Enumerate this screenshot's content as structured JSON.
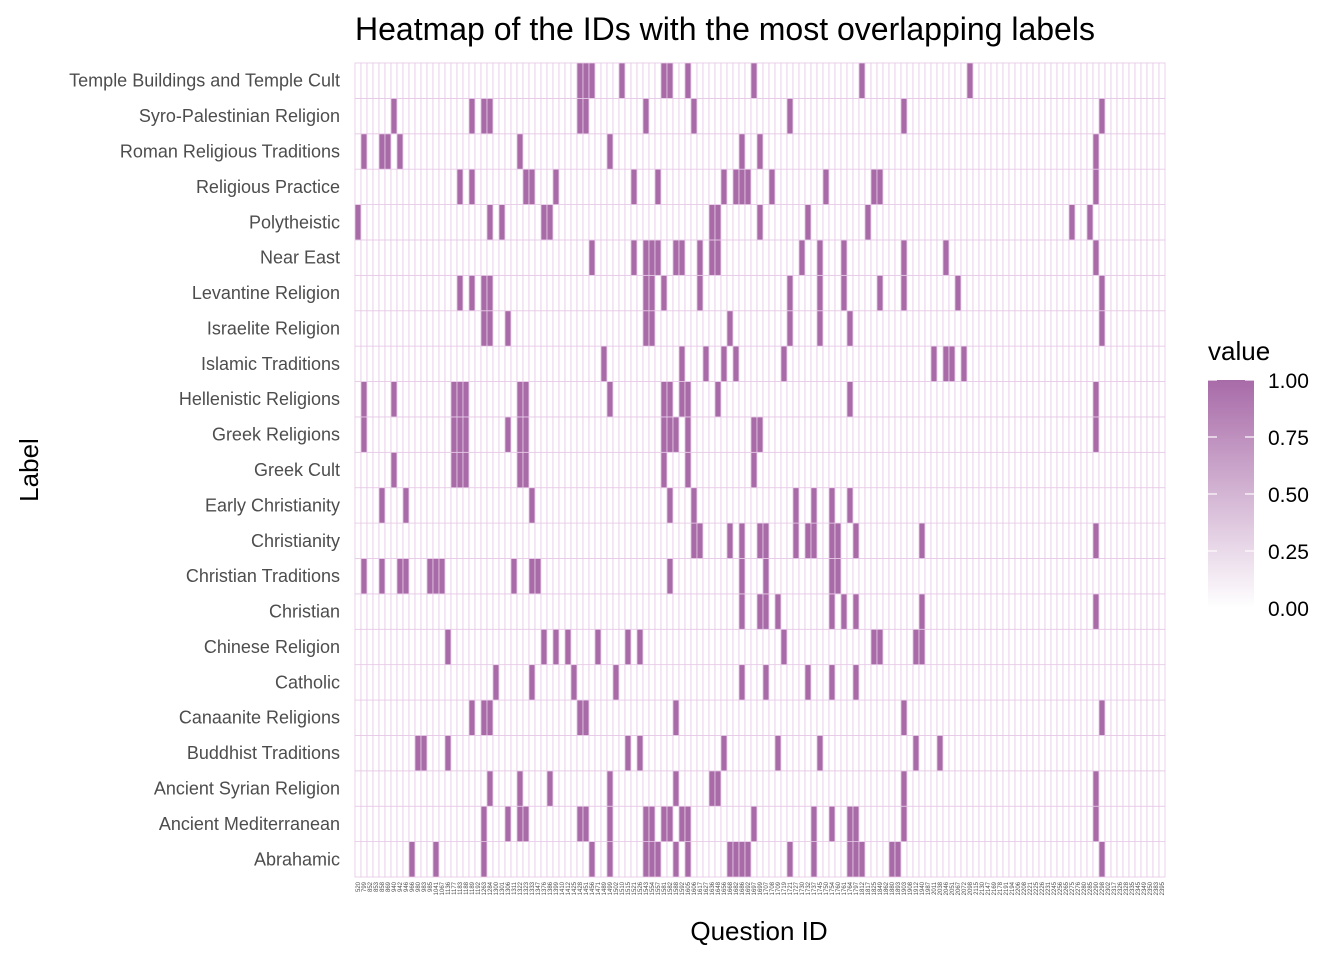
{
  "chart_data": {
    "type": "heatmap",
    "title": "Heatmap of the IDs with the most overlapping labels",
    "xlabel": "Question ID",
    "ylabel": "Label",
    "x": [
      "520",
      "799",
      "852",
      "853",
      "858",
      "869",
      "940",
      "942",
      "946",
      "966",
      "980",
      "983",
      "985",
      "1041",
      "1067",
      "1136",
      "1177",
      "1183",
      "1188",
      "1189",
      "1192",
      "1263",
      "1284",
      "1300",
      "1301",
      "1306",
      "1311",
      "1322",
      "1323",
      "1333",
      "1347",
      "1376",
      "1386",
      "1399",
      "1410",
      "1412",
      "1425",
      "1428",
      "1451",
      "1456",
      "1471",
      "1489",
      "1499",
      "1502",
      "1510",
      "1515",
      "1521",
      "1526",
      "1543",
      "1554",
      "1557",
      "1581",
      "1582",
      "1588",
      "1592",
      "1605",
      "1606",
      "1617",
      "1627",
      "1636",
      "1648",
      "1656",
      "1668",
      "1682",
      "1686",
      "1692",
      "1697",
      "1699",
      "1707",
      "1708",
      "1709",
      "1719",
      "1721",
      "1727",
      "1730",
      "1732",
      "1737",
      "1745",
      "1750",
      "1754",
      "1760",
      "1761",
      "1764",
      "1797",
      "1812",
      "1817",
      "1825",
      "1849",
      "1862",
      "1880",
      "1893",
      "1903",
      "1908",
      "1912",
      "1940",
      "1987",
      "2011",
      "2038",
      "2046",
      "2051",
      "2067",
      "2072",
      "2098",
      "2115",
      "2130",
      "2147",
      "2169",
      "2178",
      "2191",
      "2194",
      "2206",
      "2208",
      "2221",
      "2225",
      "2226",
      "2231",
      "2245",
      "2256",
      "2265",
      "2275",
      "2276",
      "2280",
      "2285",
      "2290",
      "2298",
      "2302",
      "2317",
      "2326",
      "2328",
      "2335",
      "2345",
      "2349",
      "2350",
      "2383",
      "2395"
    ],
    "y": [
      "Abrahamic",
      "Ancient Mediterranean",
      "Ancient Syrian Religion",
      "Buddhist Traditions",
      "Canaanite Religions",
      "Catholic",
      "Chinese Religion",
      "Christian",
      "Christian Traditions",
      "Christianity",
      "Early Christianity",
      "Greek Cult",
      "Greek Religions",
      "Hellenistic Religions",
      "Islamic Traditions",
      "Israelite Religion",
      "Levantine Religion",
      "Near East",
      "Polytheistic",
      "Religious Practice",
      "Roman Religious Traditions",
      "Syro-Palestinian Religion",
      "Temple Buildings and Temple Cult"
    ],
    "filled": {
      "Temple Buildings and Temple Cult": [
        37,
        38,
        39,
        44,
        51,
        52,
        55,
        66,
        84,
        102
      ],
      "Syro-Palestinian Religion": [
        6,
        19,
        21,
        22,
        37,
        38,
        48,
        56,
        72,
        91,
        124
      ],
      "Roman Religious Traditions": [
        1,
        4,
        5,
        7,
        27,
        42,
        64,
        67,
        123
      ],
      "Religious Practice": [
        17,
        19,
        28,
        29,
        33,
        46,
        50,
        61,
        63,
        64,
        65,
        69,
        78,
        86,
        87,
        123
      ],
      "Polytheistic": [
        0,
        22,
        24,
        31,
        32,
        59,
        60,
        67,
        75,
        85,
        119,
        122
      ],
      "Near East": [
        39,
        46,
        48,
        49,
        50,
        53,
        54,
        57,
        59,
        60,
        74,
        77,
        81,
        91,
        98,
        123
      ],
      "Levantine Religion": [
        17,
        19,
        21,
        22,
        48,
        49,
        51,
        57,
        72,
        77,
        81,
        87,
        91,
        100,
        124
      ],
      "Israelite Religion": [
        21,
        22,
        25,
        48,
        49,
        62,
        72,
        77,
        82,
        124
      ],
      "Islamic Traditions": [
        41,
        54,
        58,
        61,
        63,
        71,
        96,
        98,
        99,
        101
      ],
      "Hellenistic Religions": [
        1,
        6,
        16,
        17,
        18,
        27,
        28,
        42,
        51,
        52,
        54,
        55,
        60,
        82,
        123
      ],
      "Greek Religions": [
        1,
        16,
        17,
        18,
        25,
        27,
        28,
        51,
        52,
        53,
        55,
        66,
        67,
        123
      ],
      "Greek Cult": [
        6,
        16,
        17,
        18,
        27,
        28,
        51,
        55,
        66
      ],
      "Early Christianity": [
        4,
        8,
        29,
        52,
        56,
        73,
        76,
        79,
        82
      ],
      "Christianity": [
        56,
        57,
        62,
        64,
        67,
        68,
        73,
        75,
        76,
        79,
        80,
        83,
        94,
        123
      ],
      "Christian Traditions": [
        1,
        4,
        7,
        8,
        12,
        13,
        14,
        26,
        29,
        30,
        52,
        64,
        68,
        79,
        80
      ],
      "Christian": [
        64,
        67,
        68,
        70,
        79,
        81,
        83,
        94,
        123
      ],
      "Chinese Religion": [
        15,
        31,
        33,
        35,
        40,
        45,
        47,
        71,
        86,
        87,
        93,
        94
      ],
      "Catholic": [
        23,
        29,
        36,
        43,
        64,
        68,
        75,
        79,
        83
      ],
      "Canaanite Religions": [
        19,
        21,
        22,
        37,
        38,
        53,
        91,
        124
      ],
      "Buddhist Traditions": [
        10,
        11,
        15,
        45,
        47,
        61,
        70,
        77,
        93,
        97
      ],
      "Ancient Syrian Religion": [
        22,
        27,
        32,
        42,
        53,
        59,
        60,
        91,
        123
      ],
      "Ancient Mediterranean": [
        21,
        25,
        27,
        28,
        37,
        38,
        42,
        48,
        49,
        51,
        52,
        54,
        55,
        66,
        76,
        79,
        82,
        83,
        91,
        123
      ],
      "Abrahamic": [
        9,
        13,
        21,
        39,
        42,
        48,
        49,
        50,
        53,
        55,
        62,
        63,
        64,
        65,
        72,
        76,
        82,
        83,
        84,
        89,
        90,
        124
      ]
    },
    "value_range": [
      0,
      1
    ],
    "fill_color_low": "#ffffff",
    "fill_color_high": "#a86ba8",
    "grid_color": "#e6c8e6",
    "legend_position": "right",
    "legend": {
      "title": "value",
      "ticks": [
        "1.00",
        "0.75",
        "0.50",
        "0.25",
        "0.00"
      ]
    }
  }
}
